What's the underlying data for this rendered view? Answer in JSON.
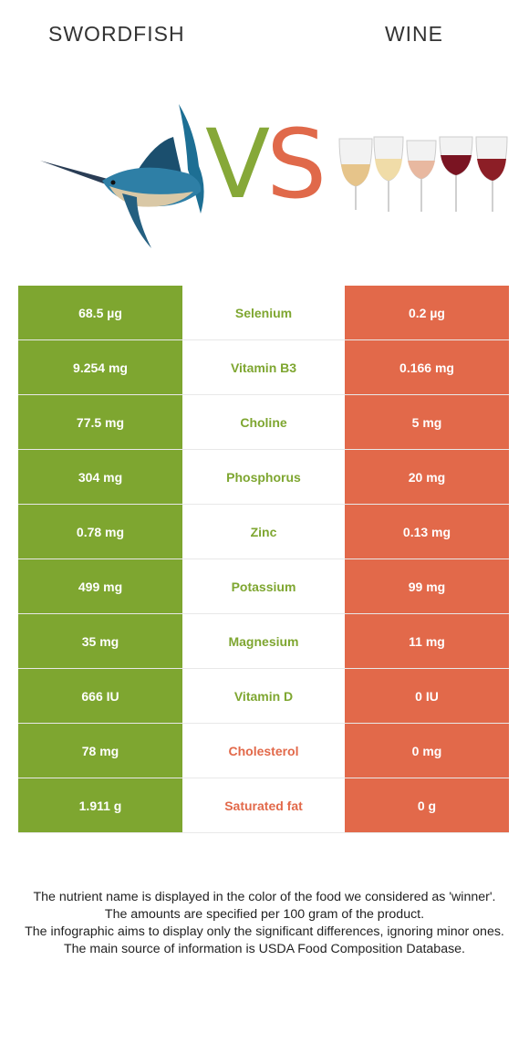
{
  "header": {
    "left_title": "SWORDFISH",
    "right_title": "WINE"
  },
  "vs": {
    "v": "V",
    "s": "S"
  },
  "colors": {
    "left_food": "#7ea630",
    "right_food": "#e2694a"
  },
  "rows": [
    {
      "left": "68.5 µg",
      "nutrient": "Selenium",
      "right": "0.2 µg",
      "winner": "left"
    },
    {
      "left": "9.254 mg",
      "nutrient": "Vitamin B3",
      "right": "0.166 mg",
      "winner": "left"
    },
    {
      "left": "77.5 mg",
      "nutrient": "Choline",
      "right": "5 mg",
      "winner": "left"
    },
    {
      "left": "304 mg",
      "nutrient": "Phosphorus",
      "right": "20 mg",
      "winner": "left"
    },
    {
      "left": "0.78 mg",
      "nutrient": "Zinc",
      "right": "0.13 mg",
      "winner": "left"
    },
    {
      "left": "499 mg",
      "nutrient": "Potassium",
      "right": "99 mg",
      "winner": "left"
    },
    {
      "left": "35 mg",
      "nutrient": "Magnesium",
      "right": "11 mg",
      "winner": "left"
    },
    {
      "left": "666 IU",
      "nutrient": "Vitamin D",
      "right": "0 IU",
      "winner": "left"
    },
    {
      "left": "78 mg",
      "nutrient": "Cholesterol",
      "right": "0 mg",
      "winner": "right"
    },
    {
      "left": "1.911 g",
      "nutrient": "Saturated fat",
      "right": "0 g",
      "winner": "right"
    }
  ],
  "notes": [
    "The nutrient name is displayed in the color of the food we considered as 'winner'.",
    "The amounts are specified per 100 gram of the product.",
    "The infographic aims to display only the significant differences, ignoring minor ones.",
    "The main source of information is USDA Food Composition Database."
  ]
}
